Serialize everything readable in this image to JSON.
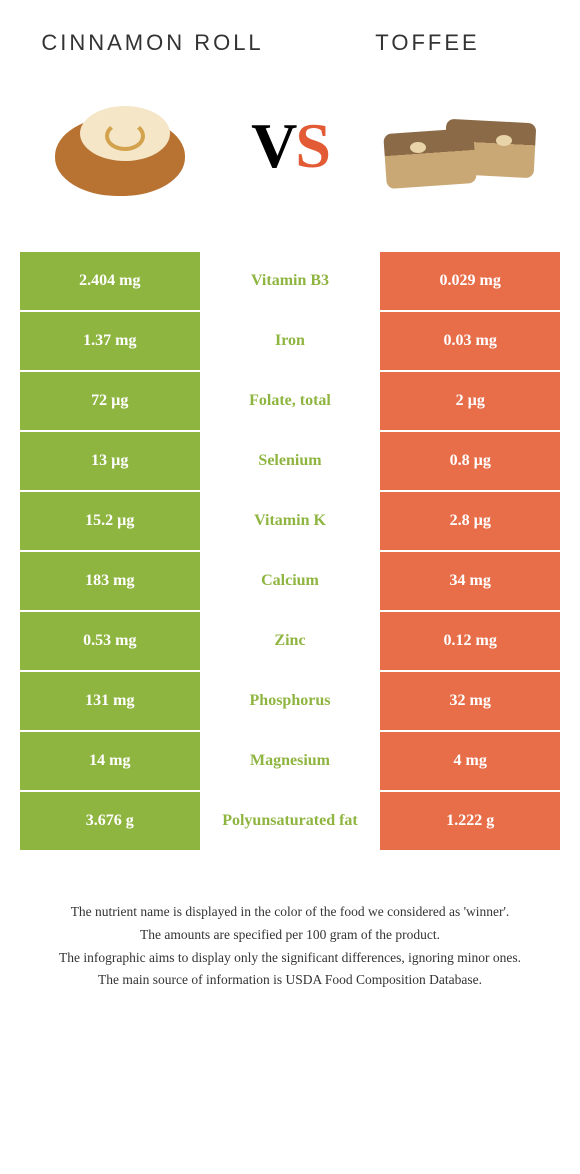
{
  "foods": {
    "left": {
      "name": "Cinnamon Roll",
      "color": "#8fb541"
    },
    "right": {
      "name": "Toffee",
      "color": "#e86e4a"
    }
  },
  "vs": {
    "v": "V",
    "s": "S"
  },
  "rows": [
    {
      "left": "2.404 mg",
      "mid": "Vitamin B3",
      "right": "0.029 mg",
      "winner": "left"
    },
    {
      "left": "1.37 mg",
      "mid": "Iron",
      "right": "0.03 mg",
      "winner": "left"
    },
    {
      "left": "72 µg",
      "mid": "Folate, total",
      "right": "2 µg",
      "winner": "left"
    },
    {
      "left": "13 µg",
      "mid": "Selenium",
      "right": "0.8 µg",
      "winner": "left"
    },
    {
      "left": "15.2 µg",
      "mid": "Vitamin K",
      "right": "2.8 µg",
      "winner": "left"
    },
    {
      "left": "183 mg",
      "mid": "Calcium",
      "right": "34 mg",
      "winner": "left"
    },
    {
      "left": "0.53 mg",
      "mid": "Zinc",
      "right": "0.12 mg",
      "winner": "left"
    },
    {
      "left": "131 mg",
      "mid": "Phosphorus",
      "right": "32 mg",
      "winner": "left"
    },
    {
      "left": "14 mg",
      "mid": "Magnesium",
      "right": "4 mg",
      "winner": "left"
    },
    {
      "left": "3.676 g",
      "mid": "Polyunsaturated fat",
      "right": "1.222 g",
      "winner": "left"
    }
  ],
  "layout": {
    "left_width_pct": 33.5,
    "mid_width_pct": 33,
    "right_width_pct": 33.5
  },
  "footer": [
    "The nutrient name is displayed in the color of the food we considered as 'winner'.",
    "The amounts are specified per 100 gram of the product.",
    "The infographic aims to display only the significant differences, ignoring minor ones.",
    "The main source of information is USDA Food Composition Database."
  ]
}
